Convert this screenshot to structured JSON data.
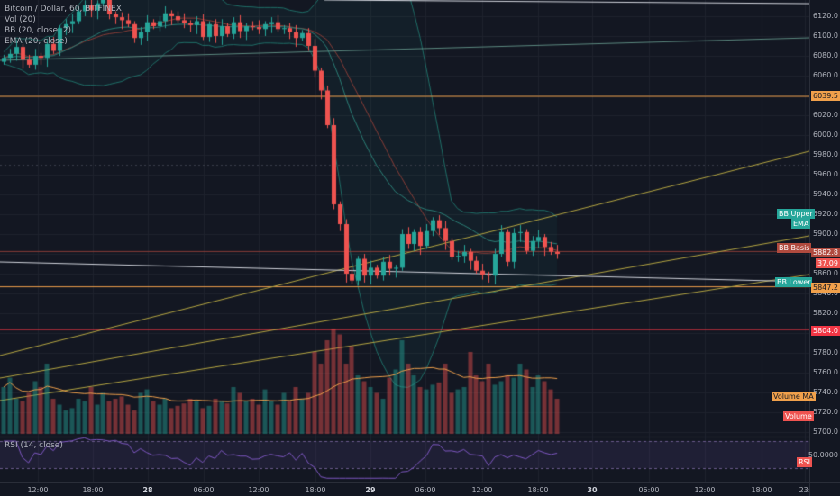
{
  "legend": {
    "symbol": "Bitcoin / Dollar, 60, BITFINEX",
    "vol": "Vol (20)",
    "bb": "BB (20, close, 2)",
    "ema": "EMA (20, close)",
    "rsi": "RSI (14, close)"
  },
  "price_ticks": [
    "6120.0",
    "6100.0",
    "6080.0",
    "6060.0",
    "6040.0",
    "6020.0",
    "6000.0",
    "5980.0",
    "5960.0",
    "5940.0",
    "5920.0",
    "5900.0",
    "5880.0",
    "5860.0",
    "5840.0",
    "5820.0",
    "5800.0",
    "5780.0",
    "5760.0",
    "5740.0",
    "5720.0",
    "5700.0"
  ],
  "rsi_tick": "50.0000",
  "labels": {
    "level_6039": "6039.5",
    "bb_upper": "BB Upper",
    "ema": "EMA",
    "bb_basis": "BB Basis",
    "level_5882": "5882.8",
    "last_price": "37.09",
    "bb_lower": "BB Lower",
    "level_5847": "5847.2",
    "level_5804": "5804.0",
    "volume_ma": "Volume MA",
    "volume": "Volume",
    "rsi": "RSI"
  },
  "time_ticks": [
    {
      "label": "12:00",
      "day": false
    },
    {
      "label": "18:00",
      "day": false
    },
    {
      "label": "28",
      "day": true
    },
    {
      "label": "06:00",
      "day": false
    },
    {
      "label": "12:00",
      "day": false
    },
    {
      "label": "18:00",
      "day": false
    },
    {
      "label": "29",
      "day": true
    },
    {
      "label": "06:00",
      "day": false
    },
    {
      "label": "12:00",
      "day": false
    },
    {
      "label": "18:00",
      "day": false
    },
    {
      "label": "30",
      "day": true
    },
    {
      "label": "06:00",
      "day": false
    },
    {
      "label": "12:00",
      "day": false
    },
    {
      "label": "18:00",
      "day": false
    },
    {
      "label": "23:",
      "day": false
    }
  ],
  "colors": {
    "up": "#26a69a",
    "down": "#ef5350",
    "background": "#131722",
    "grid": "#1e222d",
    "bb_band": "#26a69a",
    "trendline": "#b5a642",
    "level_orange": "#f0a04b",
    "level_red": "#f23645"
  },
  "chart_data": {
    "type": "candlestick",
    "symbol": "BTCUSD",
    "interval": "60",
    "price_range": [
      5696,
      6136
    ],
    "hourly_closes": [
      6078,
      6082,
      6089,
      6076,
      6071,
      6080,
      6078,
      6092,
      6085,
      6108,
      6112,
      6115,
      6125,
      6131,
      6126,
      6133,
      6138,
      6122,
      6119,
      6116,
      6112,
      6098,
      6104,
      6114,
      6110,
      6115,
      6123,
      6120,
      6116,
      6113,
      6111,
      6115,
      6099,
      6112,
      6100,
      6110,
      6102,
      6114,
      6105,
      6110,
      6109,
      6107,
      6112,
      6114,
      6107,
      6108,
      6104,
      6098,
      6103,
      6090,
      6065,
      6045,
      6010,
      5930,
      5910,
      5860,
      5853,
      5875,
      5858,
      5866,
      5858,
      5872,
      5865,
      5866,
      5900,
      5890,
      5902,
      5888,
      5903,
      5914,
      5906,
      5893,
      5877,
      5878,
      5882,
      5873,
      5863,
      5859,
      5858,
      5880,
      5902,
      5872,
      5901,
      5902,
      5883,
      5893,
      5897,
      5887,
      5882,
      5880
    ]
  }
}
